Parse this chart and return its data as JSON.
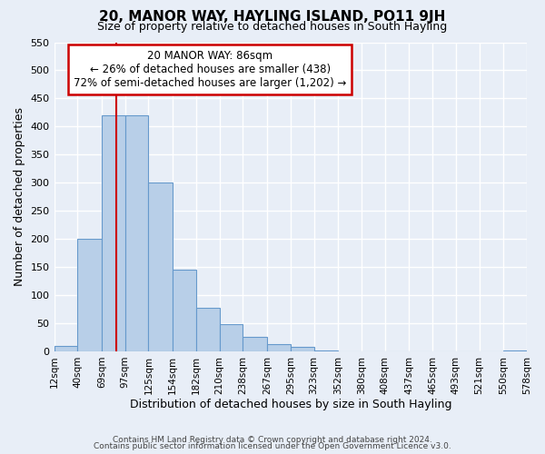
{
  "title": "20, MANOR WAY, HAYLING ISLAND, PO11 9JH",
  "subtitle": "Size of property relative to detached houses in South Hayling",
  "xlabel": "Distribution of detached houses by size in South Hayling",
  "ylabel": "Number of detached properties",
  "bar_values": [
    10,
    200,
    420,
    420,
    300,
    145,
    78,
    48,
    25,
    13,
    8,
    2,
    0,
    0,
    0,
    0,
    0,
    0,
    0,
    2
  ],
  "bin_edges": [
    12,
    40,
    69,
    97,
    125,
    154,
    182,
    210,
    238,
    267,
    295,
    323,
    352,
    380,
    408,
    437,
    465,
    493,
    521,
    550,
    578
  ],
  "bin_labels": [
    "12sqm",
    "40sqm",
    "69sqm",
    "97sqm",
    "125sqm",
    "154sqm",
    "182sqm",
    "210sqm",
    "238sqm",
    "267sqm",
    "295sqm",
    "323sqm",
    "352sqm",
    "380sqm",
    "408sqm",
    "437sqm",
    "465sqm",
    "493sqm",
    "521sqm",
    "550sqm",
    "578sqm"
  ],
  "bar_color": "#b8cfe8",
  "bar_edge_color": "#6699cc",
  "ylim": [
    0,
    550
  ],
  "yticks": [
    0,
    50,
    100,
    150,
    200,
    250,
    300,
    350,
    400,
    450,
    500,
    550
  ],
  "property_sqm": 86,
  "annotation_title": "20 MANOR WAY: 86sqm",
  "annotation_line1": "← 26% of detached houses are smaller (438)",
  "annotation_line2": "72% of semi-detached houses are larger (1,202) →",
  "annotation_box_color": "#ffffff",
  "annotation_box_edge": "#cc0000",
  "vertical_line_color": "#cc0000",
  "footer1": "Contains HM Land Registry data © Crown copyright and database right 2024.",
  "footer2": "Contains public sector information licensed under the Open Government Licence v3.0.",
  "bg_color": "#e8eef7",
  "plot_bg_color": "#e8eef7",
  "grid_color": "#ffffff"
}
